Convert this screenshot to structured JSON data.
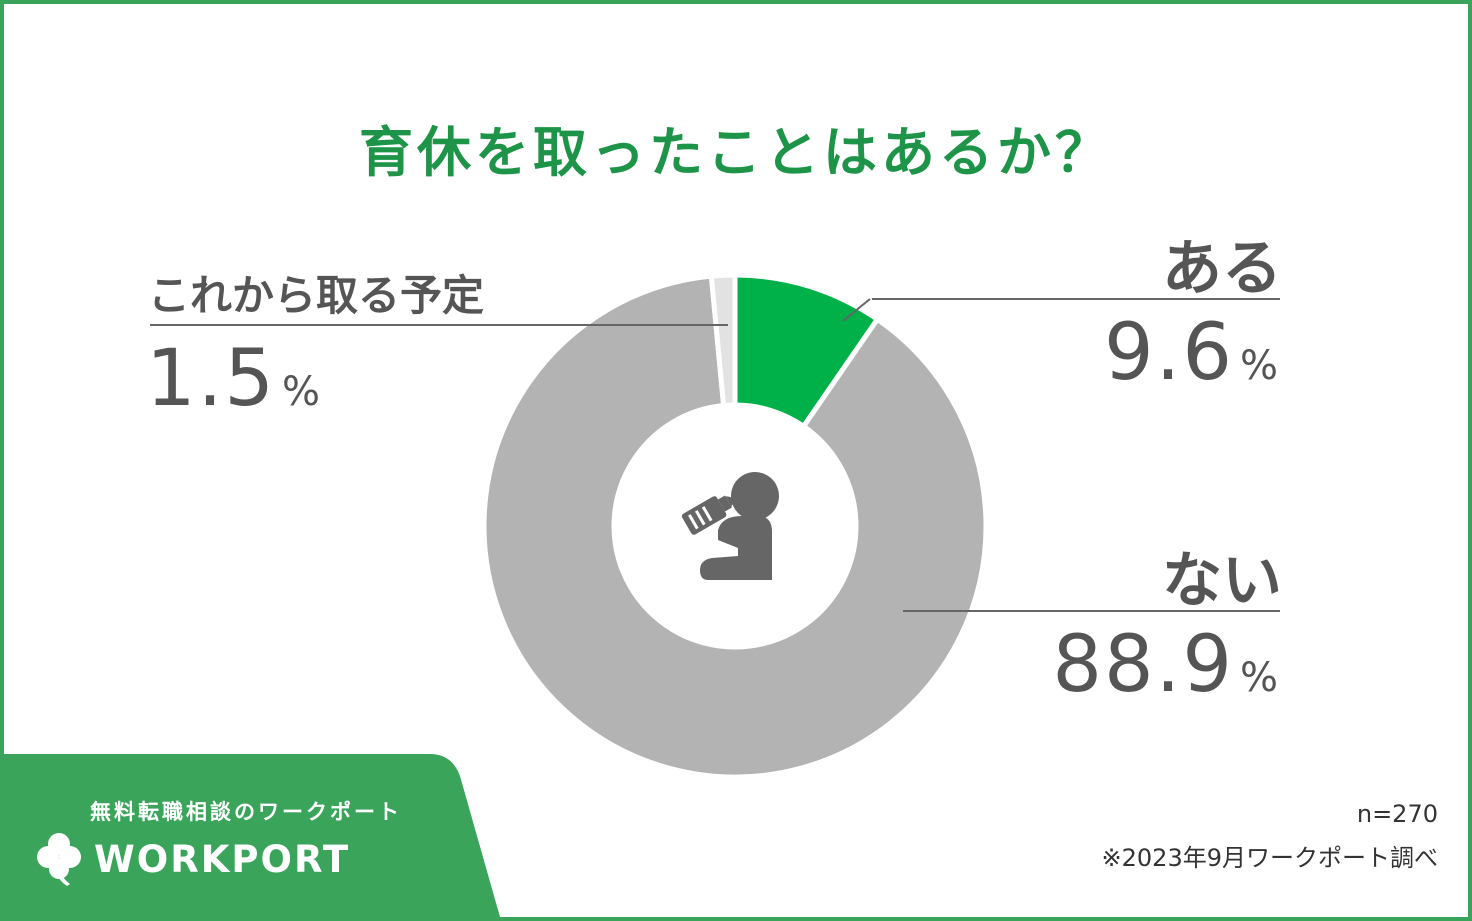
{
  "title": "育休を取ったことはあるか？",
  "chart_data": {
    "type": "pie",
    "categories": [
      "ある",
      "ない",
      "これから取る予定"
    ],
    "values": [
      9.6,
      88.9,
      1.5
    ],
    "value_labels": [
      "9.6",
      "88.9",
      "1.5"
    ],
    "unit": "%",
    "colors": [
      "#00b14a",
      "#b3b3b3",
      "#e2e2e2"
    ],
    "center_icon": "baby-bottle-icon"
  },
  "sample_size": "n=270",
  "source_note": "※2023年9月ワークポート調べ",
  "brand": {
    "tagline": "無料転職相談のワークポート",
    "logo_text": "WORKPORT",
    "logo_icon": "clover-icon",
    "color": "#3aa55a"
  }
}
